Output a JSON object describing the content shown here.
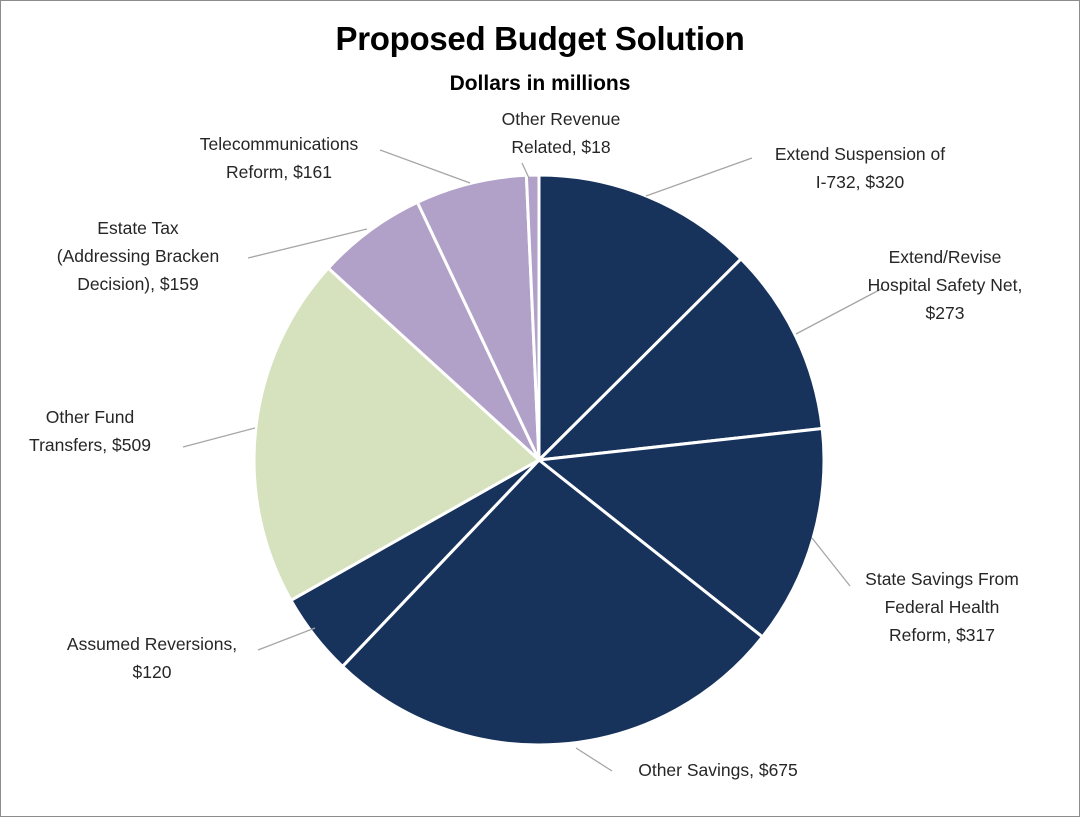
{
  "chart_data": {
    "type": "pie",
    "title": "Proposed Budget Solution",
    "subtitle": "Dollars in millions",
    "start_angle_deg": 0,
    "direction": "clockwise",
    "slices": [
      {
        "label_lines": [
          "Extend Suspension of",
          "I-732,  $320"
        ],
        "name": "Extend Suspension of I-732",
        "value": 320,
        "color": "#17335c"
      },
      {
        "label_lines": [
          "Extend/Revise",
          "Hospital Safety Net,",
          "$273"
        ],
        "name": "Extend/Revise Hospital Safety Net",
        "value": 273,
        "color": "#17335c"
      },
      {
        "label_lines": [
          "State Savings From",
          "Federal Health",
          "Reform,  $317"
        ],
        "name": "State Savings From Federal Health Reform",
        "value": 317,
        "color": "#17335c"
      },
      {
        "label_lines": [
          "Other Savings,  $675"
        ],
        "name": "Other Savings",
        "value": 675,
        "color": "#17335c"
      },
      {
        "label_lines": [
          "Assumed Reversions,",
          "$120"
        ],
        "name": "Assumed Reversions",
        "value": 120,
        "color": "#17335c"
      },
      {
        "label_lines": [
          "Other Fund",
          "Transfers,  $509"
        ],
        "name": "Other Fund Transfers",
        "value": 509,
        "color": "#d6e2bd"
      },
      {
        "label_lines": [
          "Estate Tax",
          "(Addressing Bracken",
          "Decision),  $159"
        ],
        "name": "Estate Tax (Addressing Bracken Decision)",
        "value": 159,
        "color": "#b1a0c8"
      },
      {
        "label_lines": [
          "Telecommunications",
          "Reform,  $161"
        ],
        "name": "Telecommunications Reform",
        "value": 161,
        "color": "#b1a0c8"
      },
      {
        "label_lines": [
          "Other Revenue",
          "Related,  $18"
        ],
        "name": "Other Revenue Related",
        "value": 18,
        "color": "#b1a0c8"
      }
    ],
    "units": "Dollars in millions",
    "legend": "none",
    "label_style": "outside with leader lines"
  }
}
